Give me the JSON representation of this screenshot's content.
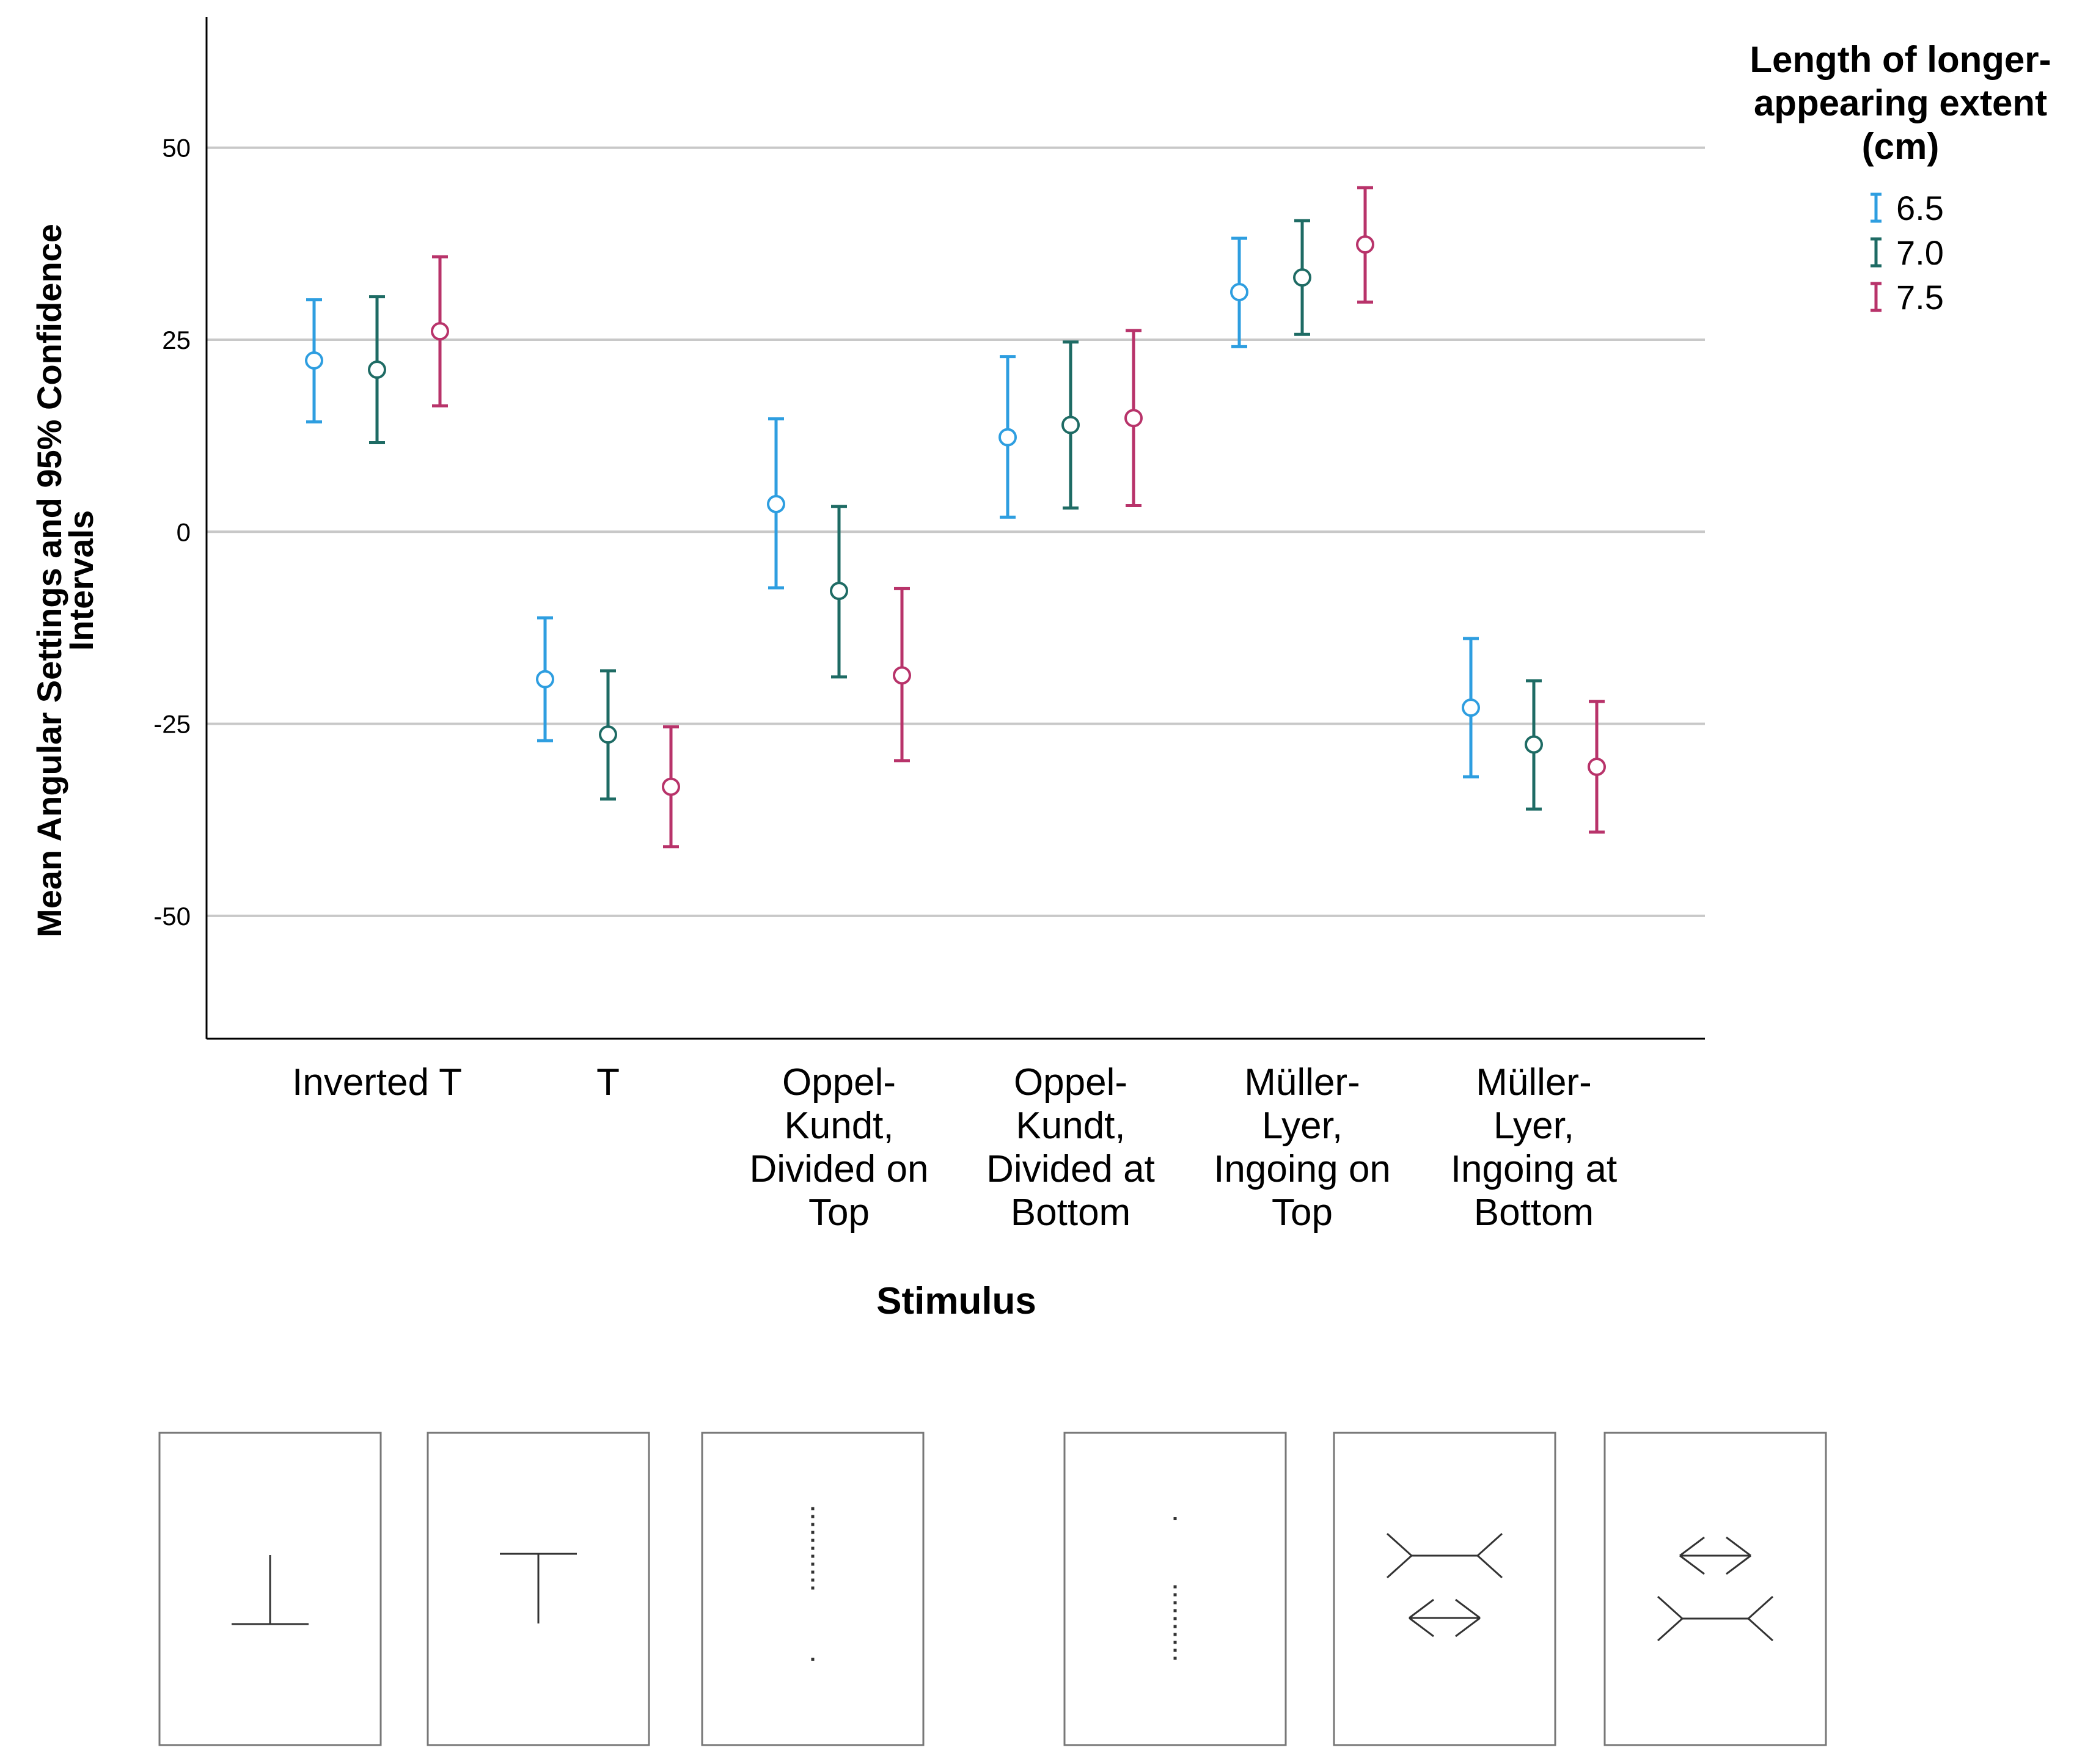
{
  "chart_data": {
    "type": "scatter",
    "subtype": "error-bar",
    "title": "",
    "xlabel": "Stimulus",
    "ylabel": "Mean Angular Settings and 95% Confidence Intervals",
    "ylabel_lines": [
      "Mean Angular Settings and 95% Confidence",
      "Intervals"
    ],
    "ylim": [
      -66,
      67
    ],
    "yticks": [
      50,
      25,
      0,
      -25,
      -50
    ],
    "ytick_labels": [
      "50",
      "25",
      "0",
      "-25",
      "-50"
    ],
    "grid": true,
    "legend_position": "top-right",
    "legend_title_lines": [
      "Length of longer-",
      "appearing extent",
      "(cm)"
    ],
    "categories": [
      "Inverted T",
      "T",
      "Oppel-Kundt, Divided on Top",
      "Oppel-Kundt, Divided at Bottom",
      "Müller-Lyer, Ingoing on Top",
      "Müller-Lyer, Ingoing at Bottom"
    ],
    "category_lines": [
      [
        "Inverted T"
      ],
      [
        "T"
      ],
      [
        "Oppel-",
        "Kundt,",
        "Divided on",
        "Top"
      ],
      [
        "Oppel-",
        "Kundt,",
        "Divided at",
        "Bottom"
      ],
      [
        "Müller-",
        "Lyer,",
        "Ingoing on",
        "Top"
      ],
      [
        "Müller-",
        "Lyer,",
        "Ingoing at",
        "Bottom"
      ]
    ],
    "series": [
      {
        "name": "6.5",
        "color": "#2e9ee0",
        "means": [
          22.3,
          -19.2,
          3.6,
          12.3,
          31.2,
          -22.9
        ],
        "lower": [
          14.3,
          -27.2,
          -7.3,
          1.9,
          24.1,
          -31.9
        ],
        "upper": [
          30.2,
          -11.2,
          14.7,
          22.8,
          38.2,
          -13.9
        ]
      },
      {
        "name": "7.0",
        "color": "#1e6b64",
        "means": [
          21.1,
          -26.4,
          -7.7,
          13.9,
          33.1,
          -27.7
        ],
        "lower": [
          11.6,
          -34.8,
          -18.9,
          3.1,
          25.7,
          -36.1
        ],
        "upper": [
          30.6,
          -18.1,
          3.3,
          24.7,
          40.5,
          -19.4
        ]
      },
      {
        "name": "7.5",
        "color": "#b8336a",
        "means": [
          26.1,
          -33.2,
          -18.7,
          14.8,
          37.4,
          -30.6
        ],
        "lower": [
          16.4,
          -41.0,
          -29.8,
          3.4,
          29.9,
          -39.1
        ],
        "upper": [
          35.8,
          -25.4,
          -7.4,
          26.2,
          44.8,
          -22.1
        ]
      }
    ]
  },
  "stimulus_panels": [
    {
      "name": "Inverted T",
      "figure": "inverted-t"
    },
    {
      "name": "T",
      "figure": "t"
    },
    {
      "name": "Oppel-Kundt, Divided on Top",
      "figure": "oppel-kundt-divided-top"
    },
    {
      "name": "Oppel-Kundt, Divided at Bottom",
      "figure": "oppel-kundt-divided-bottom"
    },
    {
      "name": "Müller-Lyer, Ingoing on Top",
      "figure": "muller-lyer-ingoing-top"
    },
    {
      "name": "Müller-Lyer, Ingoing at Bottom",
      "figure": "muller-lyer-ingoing-bottom"
    }
  ]
}
